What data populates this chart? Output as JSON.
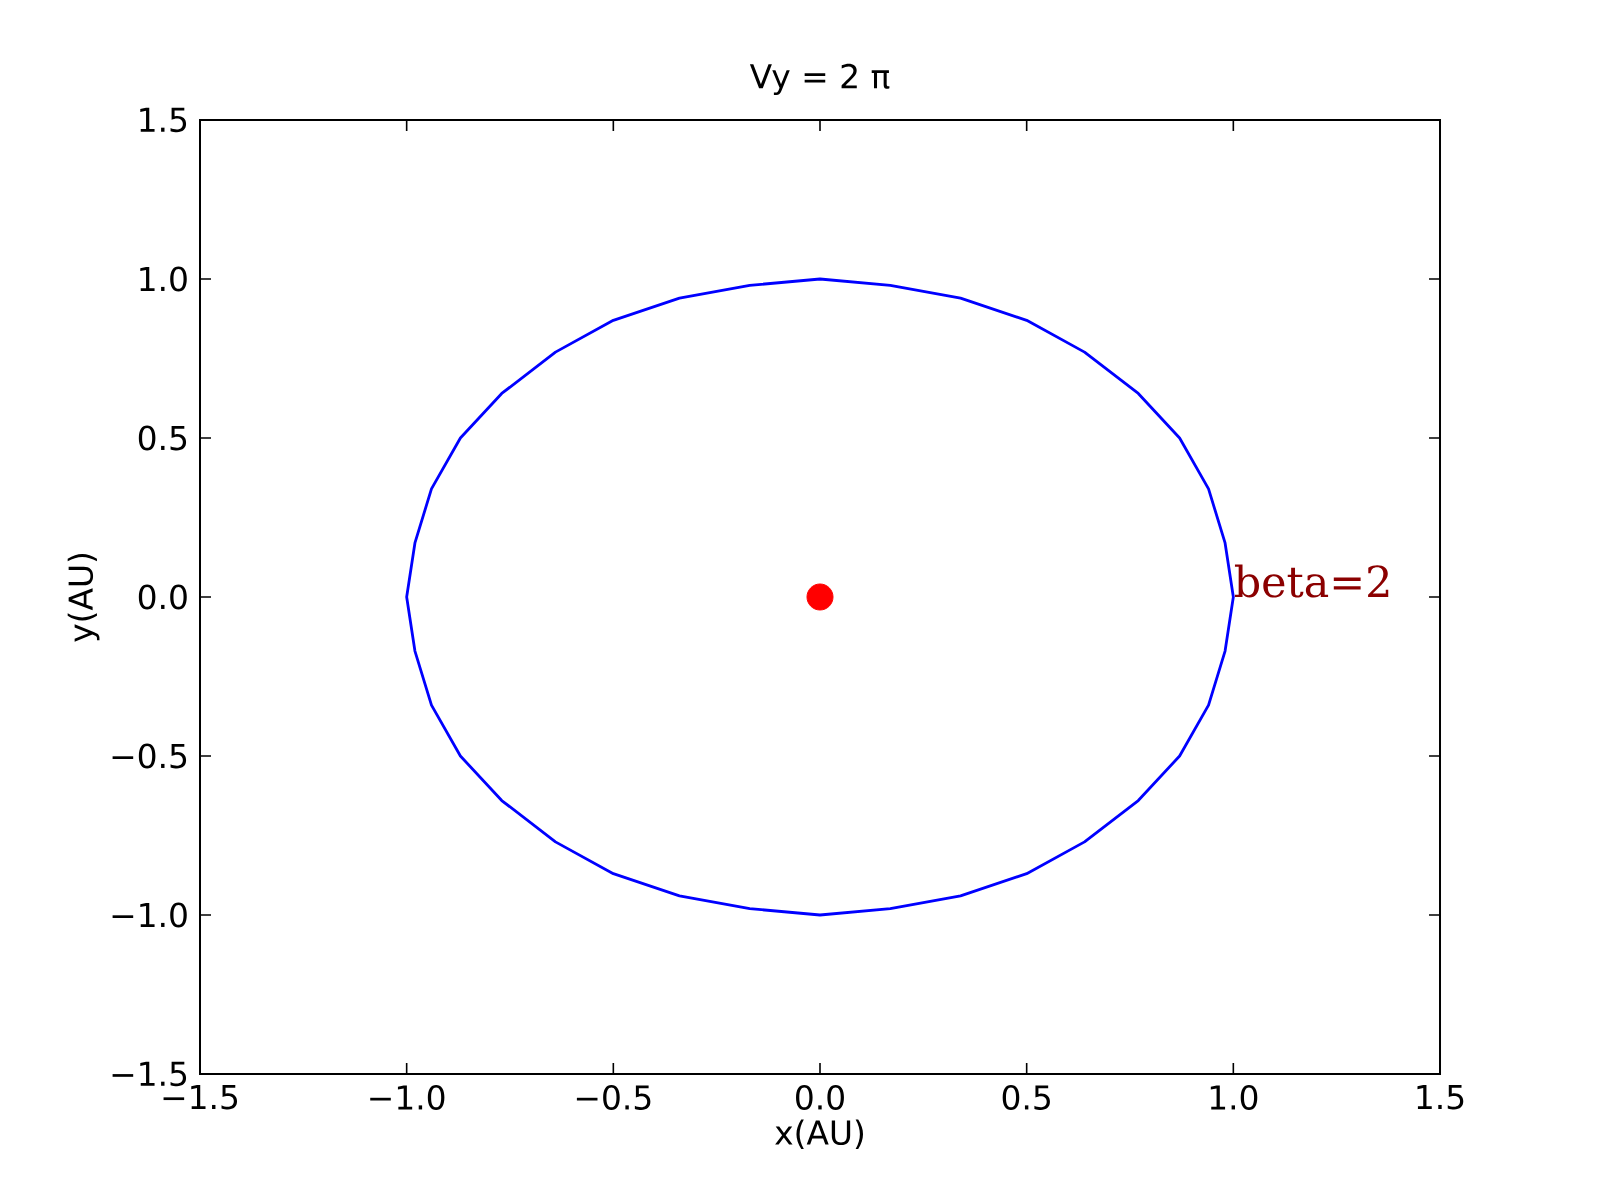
{
  "chart_data": {
    "type": "line",
    "title": "Vy = 2 π",
    "xlabel": "x(AU)",
    "ylabel": "y(AU)",
    "xlim": [
      -1.5,
      1.5
    ],
    "ylim": [
      -1.5,
      1.5
    ],
    "xticks": [
      {
        "value": -1.5,
        "label": "−1.5"
      },
      {
        "value": -1.0,
        "label": "−1.0"
      },
      {
        "value": -0.5,
        "label": "−0.5"
      },
      {
        "value": 0.0,
        "label": "0.0"
      },
      {
        "value": 0.5,
        "label": "0.5"
      },
      {
        "value": 1.0,
        "label": "1.0"
      },
      {
        "value": 1.5,
        "label": "1.5"
      }
    ],
    "yticks": [
      {
        "value": -1.5,
        "label": "−1.5"
      },
      {
        "value": -1.0,
        "label": "−1.0"
      },
      {
        "value": -0.5,
        "label": "−0.5"
      },
      {
        "value": 0.0,
        "label": "0.0"
      },
      {
        "value": 0.5,
        "label": "0.5"
      },
      {
        "value": 1.0,
        "label": "1.0"
      },
      {
        "value": 1.5,
        "label": "1.5"
      }
    ],
    "series": [
      {
        "color": "#0000ff",
        "line_style": "solid",
        "marker": "none",
        "x": [
          1.0,
          0.98,
          0.94,
          0.87,
          0.77,
          0.64,
          0.5,
          0.34,
          0.17,
          0.0,
          -0.17,
          -0.34,
          -0.5,
          -0.64,
          -0.77,
          -0.87,
          -0.94,
          -0.98,
          -1.0,
          -0.98,
          -0.94,
          -0.87,
          -0.77,
          -0.64,
          -0.5,
          -0.34,
          -0.17,
          0.0,
          0.17,
          0.34,
          0.5,
          0.64,
          0.77,
          0.87,
          0.94,
          0.98,
          1.0,
          0.98
        ],
        "values": [
          0.0,
          0.17,
          0.34,
          0.5,
          0.64,
          0.77,
          0.87,
          0.94,
          0.98,
          1.0,
          0.98,
          0.94,
          0.87,
          0.77,
          0.64,
          0.5,
          0.34,
          0.17,
          0.0,
          -0.17,
          -0.34,
          -0.5,
          -0.64,
          -0.77,
          -0.87,
          -0.94,
          -0.98,
          -1.0,
          -0.98,
          -0.94,
          -0.87,
          -0.77,
          -0.64,
          -0.5,
          -0.34,
          -0.17,
          0.0,
          0.17
        ]
      },
      {
        "type": "scatter",
        "color": "#ff0000",
        "marker": "circle",
        "x": [
          0.0
        ],
        "values": [
          0.0
        ]
      }
    ],
    "annotations": [
      {
        "text": "beta=2",
        "x": 1.0,
        "y": 0.0
      }
    ]
  }
}
